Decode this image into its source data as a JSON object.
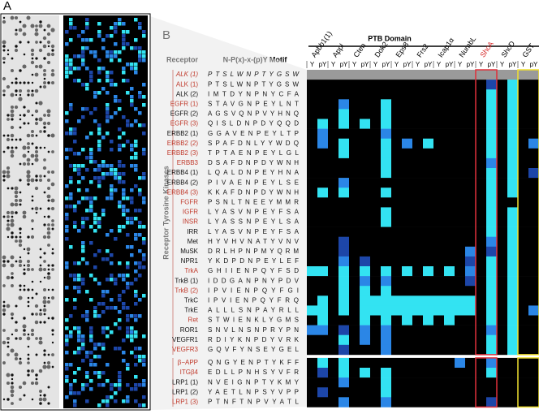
{
  "panel_a": {
    "label": "A"
  },
  "panel_b": {
    "label": "B",
    "domain_header": "PTB Domain",
    "receptor_header": "Receptor",
    "motif_header": "N-P(x)-x-(p)Y Motif",
    "group_label": "Receptor Tyrosine Kinases",
    "column_labels": [
      "Y",
      "pY"
    ],
    "domains": [
      {
        "name": "Apbb1(1)",
        "color": "#000000"
      },
      {
        "name": "Appl",
        "color": "#000000"
      },
      {
        "name": "Cten",
        "color": "#000000"
      },
      {
        "name": "Dok2",
        "color": "#000000"
      },
      {
        "name": "Eps8",
        "color": "#000000"
      },
      {
        "name": "Frs2",
        "color": "#000000"
      },
      {
        "name": "Icap1α",
        "color": "#000000"
      },
      {
        "name": "NumbL",
        "color": "#000000"
      },
      {
        "name": "ShcA",
        "color": "#d62828"
      },
      {
        "name": "ShcD",
        "color": "#000000"
      },
      {
        "name": "GST",
        "color": "#000000"
      }
    ],
    "palette": [
      "#000000",
      "#1d46a8",
      "#2b86e6",
      "#33e3f2",
      "#9a9a9a"
    ],
    "rows": [
      {
        "name": "ALK (1)",
        "motif": "PTSLWNPTYGSW",
        "color": "#c0392b",
        "italic": true,
        "levels": [
          4,
          4,
          4,
          4,
          4,
          4,
          4,
          4,
          4,
          4,
          4,
          4,
          4,
          4,
          4,
          4,
          4,
          4,
          4,
          4,
          4,
          4
        ]
      },
      {
        "name": "ALK (1)",
        "motif": "PTSLWNPTYGSW",
        "color": "#c0392b",
        "levels": [
          0,
          0,
          0,
          0,
          0,
          0,
          0,
          0,
          0,
          0,
          0,
          0,
          0,
          0,
          0,
          0,
          0,
          1,
          0,
          3,
          0,
          0
        ]
      },
      {
        "name": "ALK (2)",
        "motif": "IMTDYNPNYCFA",
        "color": "#111111",
        "levels": [
          0,
          0,
          0,
          0,
          0,
          0,
          0,
          0,
          0,
          0,
          0,
          0,
          0,
          0,
          0,
          0,
          0,
          3,
          0,
          3,
          0,
          0
        ]
      },
      {
        "name": "EGFR (1)",
        "motif": "STAVGNPEYLNT",
        "color": "#c0392b",
        "levels": [
          0,
          0,
          0,
          2,
          0,
          0,
          0,
          3,
          0,
          0,
          0,
          0,
          0,
          0,
          0,
          0,
          0,
          3,
          0,
          3,
          0,
          0
        ]
      },
      {
        "name": "EGFR (2)",
        "motif": "AGSVQNPVYHNQ",
        "color": "#111111",
        "levels": [
          0,
          0,
          0,
          3,
          0,
          0,
          0,
          3,
          0,
          0,
          0,
          0,
          0,
          0,
          0,
          0,
          0,
          3,
          0,
          3,
          0,
          0
        ]
      },
      {
        "name": "EGFR (3)",
        "motif": "QISLDNPDYQQD",
        "color": "#c0392b",
        "levels": [
          0,
          3,
          0,
          3,
          0,
          3,
          0,
          3,
          0,
          0,
          0,
          0,
          0,
          0,
          0,
          0,
          0,
          3,
          0,
          3,
          0,
          0
        ]
      },
      {
        "name": "ERBB2 (1)",
        "motif": "GGAVENPEYLTP",
        "color": "#111111",
        "levels": [
          0,
          2,
          0,
          0,
          0,
          0,
          0,
          2,
          0,
          0,
          0,
          0,
          0,
          0,
          0,
          0,
          0,
          3,
          0,
          3,
          0,
          0
        ]
      },
      {
        "name": "ERBB2 (2)",
        "motif": "SPAFDNLYYWDQ",
        "color": "#c0392b",
        "levels": [
          0,
          2,
          0,
          3,
          0,
          0,
          0,
          3,
          0,
          2,
          0,
          3,
          0,
          0,
          0,
          0,
          0,
          3,
          0,
          3,
          0,
          2
        ]
      },
      {
        "name": "ERBB2 (3)",
        "motif": "TPTAENPEYLGL",
        "color": "#c0392b",
        "levels": [
          0,
          0,
          0,
          3,
          0,
          0,
          0,
          3,
          0,
          0,
          0,
          0,
          0,
          0,
          0,
          0,
          0,
          3,
          0,
          3,
          0,
          0
        ]
      },
      {
        "name": "ERBB3",
        "motif": "DSAFDNPDYWNH",
        "color": "#c0392b",
        "levels": [
          0,
          0,
          0,
          0,
          0,
          0,
          0,
          3,
          0,
          0,
          0,
          0,
          0,
          0,
          0,
          0,
          0,
          2,
          0,
          3,
          0,
          0
        ]
      },
      {
        "name": "ERBB4 (1)",
        "motif": "LQALDNPEYHNA",
        "color": "#111111",
        "levels": [
          0,
          0,
          0,
          0,
          0,
          0,
          0,
          3,
          0,
          0,
          0,
          0,
          0,
          0,
          0,
          0,
          0,
          3,
          0,
          3,
          0,
          1
        ]
      },
      {
        "name": "ERBB4 (2)",
        "motif": "PIVAENPEYLSE",
        "color": "#111111",
        "levels": [
          0,
          0,
          0,
          2,
          0,
          0,
          0,
          0,
          0,
          0,
          0,
          0,
          0,
          0,
          0,
          0,
          0,
          3,
          0,
          3,
          0,
          0
        ]
      },
      {
        "name": "ERBB4 (3)",
        "motif": "KKAFDNPDYWNH",
        "color": "#c0392b",
        "levels": [
          0,
          3,
          0,
          3,
          0,
          0,
          0,
          3,
          0,
          0,
          0,
          0,
          0,
          0,
          0,
          0,
          0,
          3,
          0,
          3,
          0,
          0
        ]
      },
      {
        "name": "FGFR",
        "motif": "PSNLTNEEYMMR",
        "color": "#c0392b",
        "levels": [
          0,
          0,
          0,
          0,
          0,
          0,
          0,
          0,
          0,
          0,
          0,
          0,
          0,
          0,
          0,
          0,
          0,
          3,
          0,
          0,
          0,
          0
        ]
      },
      {
        "name": "IGFR",
        "motif": "LYASVNPEYFSA",
        "color": "#c0392b",
        "levels": [
          0,
          0,
          0,
          0,
          0,
          0,
          0,
          3,
          0,
          0,
          0,
          0,
          0,
          0,
          0,
          0,
          0,
          3,
          0,
          3,
          0,
          0
        ]
      },
      {
        "name": "INSR",
        "motif": "LYASSNPEYLSA",
        "color": "#c0392b",
        "levels": [
          0,
          0,
          0,
          0,
          0,
          0,
          0,
          3,
          0,
          0,
          0,
          0,
          0,
          0,
          0,
          0,
          0,
          3,
          0,
          3,
          0,
          0
        ]
      },
      {
        "name": "IRR",
        "motif": "LYASVNPEYFSA",
        "color": "#111111",
        "levels": [
          0,
          0,
          0,
          0,
          0,
          0,
          0,
          0,
          0,
          0,
          0,
          0,
          0,
          0,
          0,
          0,
          0,
          3,
          0,
          3,
          0,
          0
        ]
      },
      {
        "name": "Met",
        "motif": "HYVHVNATYVNV",
        "color": "#111111",
        "levels": [
          0,
          0,
          0,
          1,
          0,
          0,
          0,
          0,
          0,
          0,
          0,
          0,
          0,
          0,
          0,
          0,
          0,
          2,
          0,
          3,
          0,
          0
        ]
      },
      {
        "name": "MuSK",
        "motif": "DRLHPNPMYQRM",
        "color": "#111111",
        "levels": [
          0,
          0,
          0,
          1,
          0,
          0,
          0,
          0,
          0,
          0,
          0,
          0,
          0,
          0,
          0,
          2,
          0,
          1,
          0,
          3,
          0,
          0
        ]
      },
      {
        "name": "NPR1",
        "motif": "YKDPDNPEYLEF",
        "color": "#111111",
        "levels": [
          0,
          0,
          0,
          2,
          0,
          1,
          0,
          0,
          0,
          0,
          0,
          0,
          0,
          0,
          0,
          1,
          0,
          3,
          0,
          3,
          0,
          0
        ]
      },
      {
        "name": "TrkA",
        "motif": "GHIIENPQYFSD",
        "color": "#c0392b",
        "levels": [
          3,
          3,
          0,
          3,
          0,
          3,
          0,
          3,
          0,
          3,
          0,
          3,
          0,
          3,
          0,
          2,
          0,
          3,
          0,
          3,
          0,
          0
        ]
      },
      {
        "name": "TrkB (1)",
        "motif": "IDDGANPNYPDV",
        "color": "#111111",
        "levels": [
          0,
          0,
          0,
          3,
          0,
          2,
          0,
          2,
          0,
          0,
          0,
          0,
          0,
          0,
          0,
          1,
          0,
          3,
          0,
          3,
          0,
          0
        ]
      },
      {
        "name": "TrkB (2)",
        "motif": "IPVIENPQYFGI",
        "color": "#c0392b",
        "levels": [
          0,
          0,
          0,
          3,
          0,
          3,
          0,
          3,
          0,
          0,
          0,
          0,
          0,
          0,
          0,
          0,
          0,
          3,
          0,
          3,
          0,
          0
        ]
      },
      {
        "name": "TrkC",
        "motif": "IPVIENPQYFRQ",
        "color": "#111111",
        "levels": [
          0,
          3,
          0,
          3,
          0,
          3,
          3,
          3,
          3,
          3,
          3,
          3,
          3,
          3,
          3,
          3,
          0,
          3,
          0,
          3,
          0,
          0
        ]
      },
      {
        "name": "TrkE",
        "motif": "ALLLSNPAYRLL",
        "color": "#111111",
        "levels": [
          3,
          3,
          0,
          3,
          0,
          3,
          3,
          3,
          3,
          3,
          3,
          3,
          3,
          3,
          3,
          3,
          0,
          3,
          0,
          3,
          0,
          2
        ]
      },
      {
        "name": "Ret",
        "motif": "STWIENKLYGMS",
        "color": "#c0392b",
        "levels": [
          0,
          3,
          0,
          0,
          0,
          3,
          0,
          3,
          0,
          3,
          0,
          3,
          0,
          3,
          0,
          0,
          0,
          3,
          0,
          3,
          0,
          0
        ]
      },
      {
        "name": "ROR1",
        "motif": "SNVLNSNPRYPN",
        "color": "#111111",
        "levels": [
          2,
          2,
          0,
          1,
          0,
          2,
          0,
          2,
          0,
          0,
          0,
          0,
          0,
          0,
          0,
          0,
          0,
          2,
          0,
          3,
          0,
          0
        ]
      },
      {
        "name": "VEGFR1",
        "motif": "RDIYKNPDYVRK",
        "color": "#111111",
        "levels": [
          0,
          0,
          0,
          3,
          0,
          2,
          0,
          2,
          0,
          0,
          0,
          0,
          0,
          0,
          0,
          0,
          0,
          3,
          0,
          3,
          0,
          0
        ]
      },
      {
        "name": "VEGFR3",
        "motif": "GQVFYNSEYGEL",
        "color": "#c0392b",
        "levels": [
          0,
          0,
          0,
          1,
          0,
          0,
          0,
          2,
          0,
          0,
          0,
          0,
          0,
          0,
          0,
          0,
          0,
          3,
          0,
          3,
          0,
          0
        ]
      },
      {
        "name": "β−APP",
        "motif": "QNGYENPTYKFF",
        "color": "#c0392b",
        "levels": [
          0,
          3,
          0,
          3,
          0,
          0,
          0,
          0,
          0,
          0,
          0,
          0,
          0,
          0,
          2,
          0,
          0,
          2,
          0,
          0,
          0,
          0
        ]
      },
      {
        "name": "ITGβ4",
        "motif": "EDLLPNHSYVFR",
        "color": "#c0392b",
        "levels": [
          0,
          1,
          0,
          3,
          0,
          3,
          0,
          3,
          0,
          0,
          0,
          0,
          0,
          0,
          0,
          0,
          0,
          3,
          0,
          0,
          0,
          0
        ]
      },
      {
        "name": "LRP1 (1)",
        "motif": "NVEIGNPTYKMY",
        "color": "#111111",
        "levels": [
          0,
          0,
          0,
          2,
          0,
          0,
          0,
          3,
          0,
          0,
          0,
          0,
          0,
          0,
          0,
          0,
          0,
          0,
          0,
          0,
          0,
          0
        ]
      },
      {
        "name": "LRP1 (2)",
        "motif": "YAETLNPSYVPP",
        "color": "#111111",
        "levels": [
          0,
          1,
          0,
          0,
          0,
          0,
          0,
          3,
          0,
          0,
          0,
          0,
          0,
          0,
          0,
          0,
          0,
          0,
          0,
          0,
          0,
          0
        ]
      },
      {
        "name": "LRP1 (3)",
        "motif": "PTNFTNPVYATL",
        "color": "#c0392b",
        "levels": [
          0,
          0,
          0,
          2,
          0,
          0,
          0,
          2,
          0,
          0,
          0,
          0,
          0,
          0,
          0,
          0,
          0,
          1,
          0,
          0,
          0,
          0
        ]
      }
    ]
  }
}
